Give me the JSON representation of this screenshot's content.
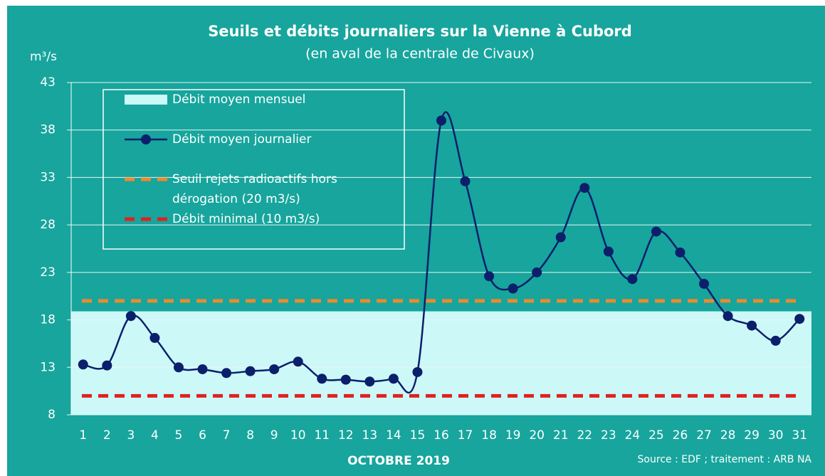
{
  "chart_data": {
    "type": "line",
    "title": "Seuils et débits journaliers sur la Vienne à Cubord",
    "subtitle": "(en aval de la centrale de Civaux)",
    "y_label": "m³/s",
    "x_label": "OCTOBRE 2019",
    "source": "Source : EDF ; traitement : ARB NA",
    "categories": [
      "1",
      "2",
      "3",
      "4",
      "5",
      "6",
      "7",
      "8",
      "9",
      "10",
      "11",
      "12",
      "13",
      "14",
      "15",
      "16",
      "17",
      "18",
      "19",
      "20",
      "21",
      "22",
      "23",
      "24",
      "25",
      "26",
      "27",
      "28",
      "29",
      "30",
      "31"
    ],
    "series": [
      {
        "name": "Débit moyen journalier",
        "color": "#0b1f6b",
        "values": [
          13.3,
          13.2,
          18.4,
          16.1,
          13.0,
          12.8,
          12.4,
          12.6,
          12.8,
          13.6,
          11.8,
          11.7,
          11.5,
          11.8,
          12.5,
          39.0,
          32.6,
          22.6,
          21.3,
          23.0,
          26.7,
          31.9,
          25.2,
          22.3,
          27.3,
          25.1,
          21.8,
          18.4,
          17.4,
          15.8,
          18.1
        ]
      }
    ],
    "monthly_mean": {
      "name": "Débit moyen mensuel",
      "value": 18.9,
      "color": "#ccf8f8"
    },
    "thresholds": [
      {
        "name": [
          "Seuil rejets radioactifs hors",
          "dérogation (20 m3/s)"
        ],
        "value": 20,
        "color": "#f0892a"
      },
      {
        "name": [
          "Débit minimal (10 m3/s)"
        ],
        "value": 10,
        "color": "#e02020"
      }
    ],
    "ylim": [
      8,
      43
    ],
    "yticks": [
      8,
      13,
      18,
      23,
      28,
      33,
      38,
      43
    ],
    "grid": true
  }
}
